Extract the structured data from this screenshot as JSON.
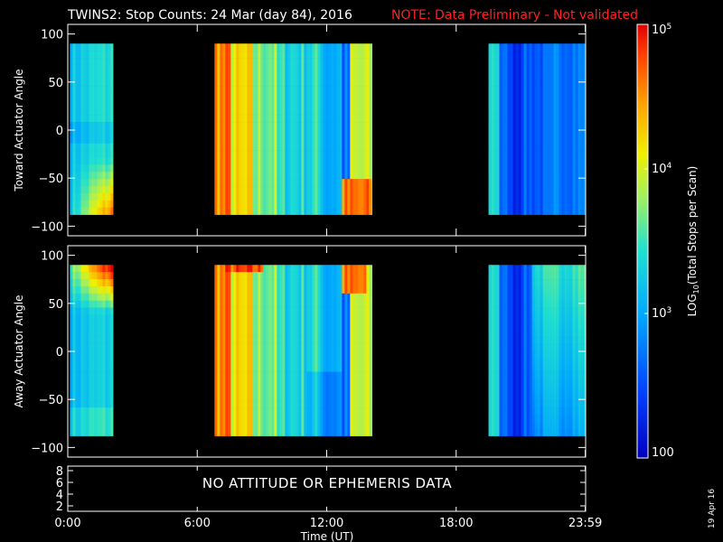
{
  "chart_data": {
    "type": "heatmap",
    "title": "TWINS2: Stop Counts: 24 Mar (day  84), 2016",
    "note": "NOTE: Data Preliminary - Not validated",
    "xlabel": "Time (UT)",
    "x_ticks": [
      "0:00",
      "6:00",
      "12:00",
      "18:00",
      "23:59"
    ],
    "x_tick_hours": [
      0,
      6,
      12,
      18,
      23.983
    ],
    "xlim": [
      0,
      24
    ],
    "colorbar": {
      "label": "LOG10(Total Stops per Scan)",
      "label_parts": [
        "LOG",
        "10",
        "(Total Stops per Scan)"
      ],
      "scale": "log",
      "range": [
        100,
        100000
      ],
      "ticks": [
        {
          "value": 100,
          "label": "100"
        },
        {
          "value": 1000,
          "label": "10",
          "sup": "3"
        },
        {
          "value": 10000,
          "label": "10",
          "sup": "4"
        },
        {
          "value": 100000,
          "label": "10",
          "sup": "5"
        }
      ]
    },
    "panels": [
      {
        "name": "toward",
        "ylabel": "Toward Actuator Angle",
        "ylim": [
          -110,
          110
        ],
        "y_ticks": [
          {
            "v": 100,
            "t": "100"
          },
          {
            "v": 50,
            "t": "50"
          },
          {
            "v": 0,
            "t": "0"
          },
          {
            "v": -50,
            "t": "−50"
          },
          {
            "v": -100,
            "t": "−100"
          }
        ],
        "data_y_range": [
          -88,
          90
        ],
        "data_intervals_hours": [
          [
            0.1,
            2.1
          ],
          [
            6.8,
            14.1
          ],
          [
            19.5,
            24.0
          ]
        ]
      },
      {
        "name": "away",
        "ylabel": "Away Actuator Angle",
        "ylim": [
          -110,
          110
        ],
        "y_ticks": [
          {
            "v": 100,
            "t": "100"
          },
          {
            "v": 50,
            "t": "50"
          },
          {
            "v": 0,
            "t": "0"
          },
          {
            "v": -50,
            "t": "−50"
          },
          {
            "v": -100,
            "t": "−100"
          }
        ],
        "data_y_range": [
          -88,
          90
        ],
        "data_intervals_hours": [
          [
            0.1,
            2.1
          ],
          [
            6.8,
            14.1
          ],
          [
            19.5,
            24.0
          ]
        ]
      }
    ],
    "ephemeris_panel": {
      "y_ticks": [
        "8",
        "6",
        "4",
        "2"
      ],
      "message": "NO ATTITUDE OR EPHEMERIS DATA"
    }
  },
  "footer_stamp": "19 Apr 16"
}
